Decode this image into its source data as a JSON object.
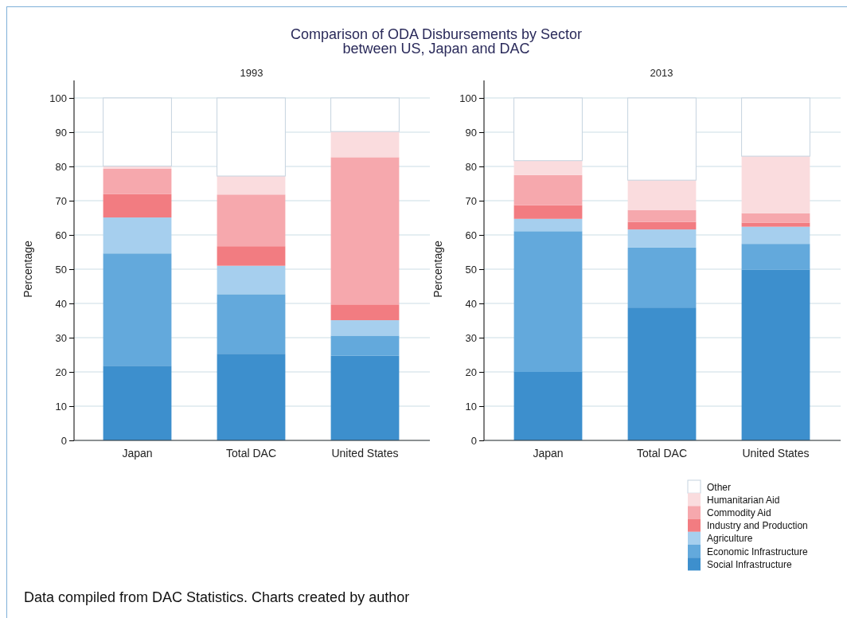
{
  "chart_data": [
    {
      "type": "bar",
      "title": "Comparison of ODA Disbursements by Sector between US, Japan and DAC",
      "subtitle": "1993",
      "ylabel": "Percentage",
      "categories": [
        "Japan",
        "Total DAC",
        "United States"
      ],
      "stacked": true,
      "ylim": [
        0,
        100
      ],
      "yticks": [
        0,
        10,
        20,
        30,
        40,
        50,
        60,
        70,
        80,
        90,
        100
      ],
      "grid": "y",
      "legend": false,
      "annotations": [
        "Data compiled from DAC Statistics. Charts created by author"
      ],
      "series": [
        {
          "color": "#3d8fcd",
          "values": [
            21.8,
            25.3,
            24.7
          ]
        },
        {
          "color": "#63a9dc",
          "values": [
            32.8,
            17.4,
            5.9
          ]
        },
        {
          "color": "#a6cfee",
          "values": [
            10.5,
            8.3,
            4.5
          ]
        },
        {
          "color": "#f27c81",
          "values": [
            6.8,
            5.7,
            4.6
          ]
        },
        {
          "color": "#f6a8ad",
          "values": [
            7.4,
            15.1,
            43.0
          ]
        },
        {
          "color": "#fadcde",
          "values": [
            0.8,
            5.4,
            7.5
          ]
        },
        {
          "color": "#ffffff",
          "values": [
            19.9,
            22.8,
            9.8
          ]
        }
      ]
    },
    {
      "type": "bar",
      "title": "2013",
      "ylabel": "Percentage",
      "categories": [
        "Japan",
        "Total DAC",
        "United States"
      ],
      "stacked": true,
      "ylim": [
        0,
        100
      ],
      "yticks": [
        0,
        10,
        20,
        30,
        40,
        50,
        60,
        70,
        80,
        90,
        100
      ],
      "grid": "y",
      "legend": "bottom right",
      "series": [
        {
          "name": "Social Infrastructure",
          "color": "#3d8fcd",
          "values": [
            20.0,
            38.8,
            49.8
          ]
        },
        {
          "name": "Economic Infrastructure",
          "color": "#63a9dc",
          "values": [
            41.1,
            17.5,
            7.6
          ]
        },
        {
          "name": "Agriculture",
          "color": "#a6cfee",
          "values": [
            3.6,
            5.3,
            5.0
          ]
        },
        {
          "name": "Industry and Production",
          "color": "#f27c81",
          "values": [
            4.0,
            2.2,
            1.2
          ]
        },
        {
          "name": "Commodity Aid",
          "color": "#f6a8ad",
          "values": [
            8.8,
            3.5,
            2.7
          ]
        },
        {
          "name": "Humanitarian Aid",
          "color": "#fadcde",
          "values": [
            4.2,
            8.7,
            16.7
          ]
        },
        {
          "name": "Other",
          "color": "#ffffff",
          "values": [
            18.3,
            24.0,
            17.0
          ]
        }
      ]
    }
  ]
}
